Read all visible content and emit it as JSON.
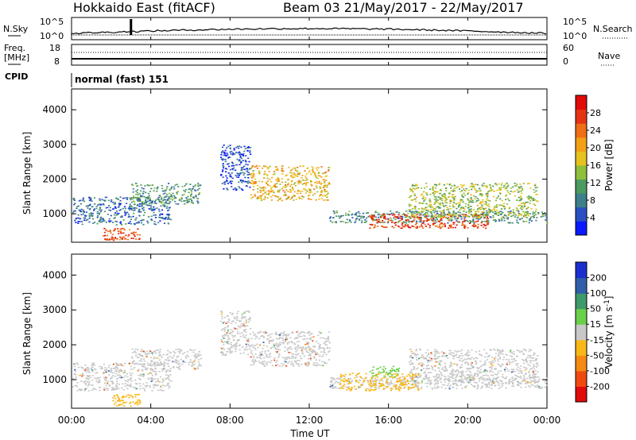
{
  "header": {
    "station": "Hokkaido East (fitACF)",
    "beam_info": "Beam 03 21/May/2017 - 22/May/2017"
  },
  "noise_panel": {
    "left_label": "N.Sky",
    "right_label": "N.Search",
    "left_ticks": [
      "10^5",
      "10^0"
    ],
    "right_ticks": [
      "10^5",
      "10^0"
    ]
  },
  "freq_panel": {
    "left_label_line1": "Freq.",
    "left_label_line2": "[MHz]",
    "right_label": "Nave",
    "left_ticks": [
      "18",
      "8"
    ],
    "right_ticks": [
      "60",
      "0"
    ]
  },
  "cpid": {
    "label": "CPID",
    "value": "normal (fast) 151"
  },
  "x_axis": {
    "title": "Time UT",
    "tick_labels": [
      "00:00",
      "04:00",
      "08:00",
      "12:00",
      "16:00",
      "20:00",
      "00:00"
    ],
    "range_hours": [
      0,
      24
    ]
  },
  "chart_data": [
    {
      "type": "heatmap",
      "parameter": "Power",
      "ylabel": "Slant Range [km]",
      "ylim": [
        180,
        4600
      ],
      "y_ticks": [
        "1000",
        "2000",
        "3000",
        "4000"
      ],
      "colorbar": {
        "label": "Power [dB]",
        "ticks": [
          "4",
          "8",
          "12",
          "16",
          "20",
          "24",
          "28"
        ],
        "colors": [
          "#0a1aff",
          "#2a4fc2",
          "#3d7f8a",
          "#4c9a5f",
          "#8fbf3a",
          "#e8c21e",
          "#f3a017",
          "#ee6f15",
          "#e43414",
          "#e00a0a"
        ]
      },
      "echo_regions": [
        {
          "t_start": 0.0,
          "t_end": 5.0,
          "r_start": 700,
          "r_end": 1500,
          "level": 8
        },
        {
          "t_start": 3.0,
          "t_end": 6.5,
          "r_start": 1300,
          "r_end": 1900,
          "level": 11
        },
        {
          "t_start": 1.5,
          "t_end": 3.5,
          "r_start": 250,
          "r_end": 600,
          "level": 25
        },
        {
          "t_start": 7.5,
          "t_end": 9.0,
          "r_start": 1700,
          "r_end": 3000,
          "level": 6
        },
        {
          "t_start": 9.0,
          "t_end": 13.0,
          "r_start": 1400,
          "r_end": 2400,
          "level": 19
        },
        {
          "t_start": 13.0,
          "t_end": 24.0,
          "r_start": 750,
          "r_end": 1100,
          "level": 10
        },
        {
          "t_start": 15.0,
          "t_end": 21.0,
          "r_start": 600,
          "r_end": 1000,
          "level": 26
        },
        {
          "t_start": 17.0,
          "t_end": 23.5,
          "r_start": 900,
          "r_end": 1900,
          "level": 15
        }
      ]
    },
    {
      "type": "heatmap",
      "parameter": "Velocity",
      "ylabel": "Slant Range [km]",
      "ylim": [
        180,
        4600
      ],
      "y_ticks": [
        "1000",
        "2000",
        "3000",
        "4000"
      ],
      "colorbar": {
        "label": "Velocity [m s^-1]",
        "ticks": [
          "-200",
          "-100",
          "-50",
          "-15",
          "15",
          "50",
          "100",
          "200"
        ],
        "colors": [
          "#e00a0a",
          "#f04a12",
          "#f58a14",
          "#f8b818",
          "#c8c8c8",
          "#6ad04a",
          "#3e9a6a",
          "#2f5fa8",
          "#1a2fd0"
        ]
      },
      "echo_regions": [
        {
          "t_start": 0.0,
          "t_end": 5.0,
          "r_start": 700,
          "r_end": 1500,
          "level": 0
        },
        {
          "t_start": 3.0,
          "t_end": 6.5,
          "r_start": 1300,
          "r_end": 1900,
          "level": 0
        },
        {
          "t_start": 2.0,
          "t_end": 3.5,
          "r_start": 250,
          "r_end": 600,
          "level": -40
        },
        {
          "t_start": 7.5,
          "t_end": 9.0,
          "r_start": 1700,
          "r_end": 3000,
          "level": 0
        },
        {
          "t_start": 9.0,
          "t_end": 13.0,
          "r_start": 1400,
          "r_end": 2400,
          "level": 0
        },
        {
          "t_start": 13.0,
          "t_end": 24.0,
          "r_start": 750,
          "r_end": 1100,
          "level": 0
        },
        {
          "t_start": 13.5,
          "t_end": 17.5,
          "r_start": 700,
          "r_end": 1200,
          "level": -40
        },
        {
          "t_start": 15.0,
          "t_end": 16.5,
          "r_start": 1100,
          "r_end": 1400,
          "level": 40
        },
        {
          "t_start": 17.0,
          "t_end": 23.5,
          "r_start": 900,
          "r_end": 1900,
          "level": 0
        }
      ]
    }
  ]
}
